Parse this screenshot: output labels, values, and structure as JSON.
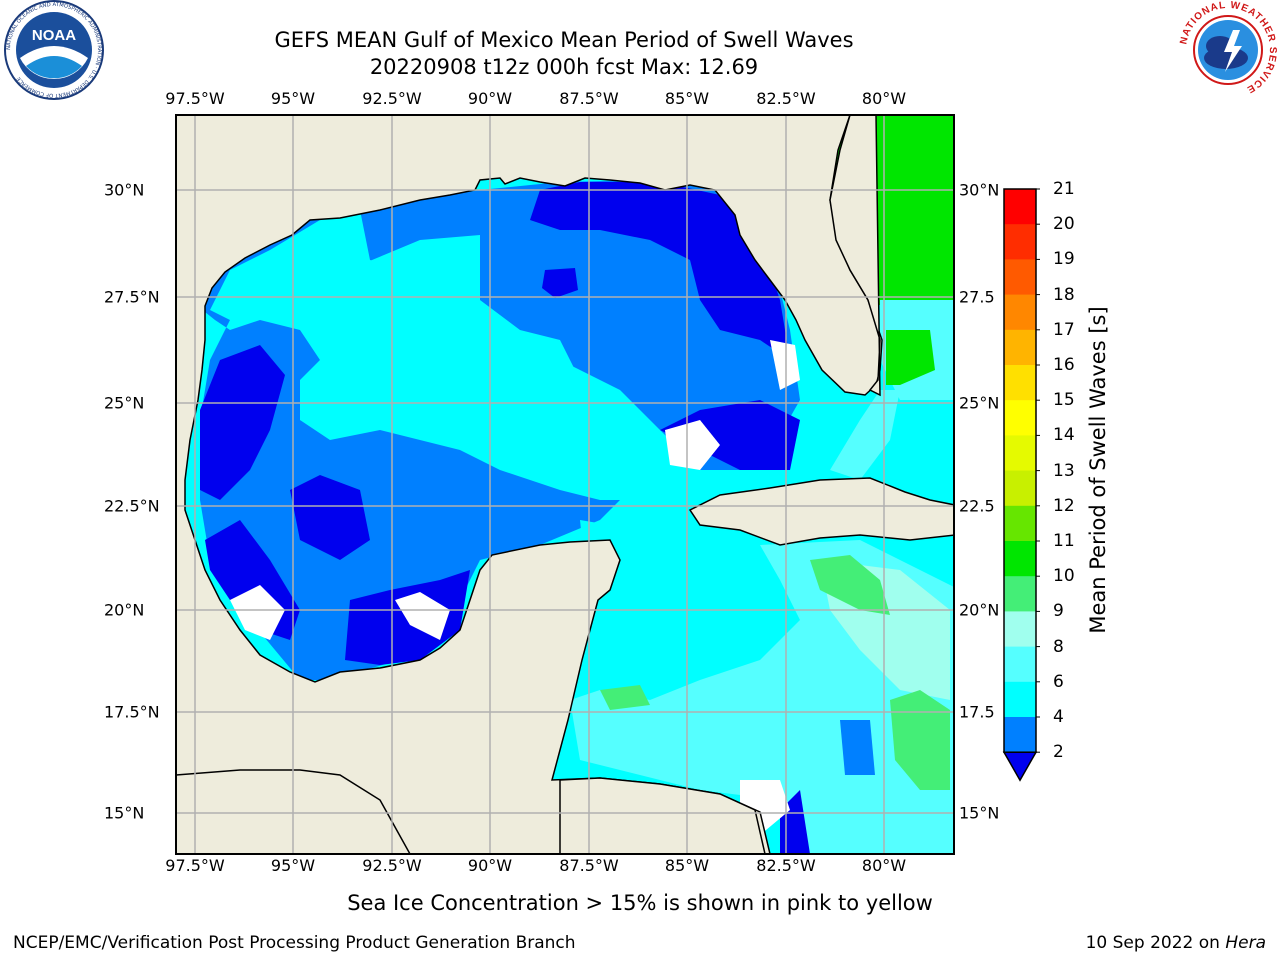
{
  "title": {
    "line1": "GEFS MEAN Gulf of Mexico Mean Period of Swell Waves",
    "line2": "20220908 t12z 000h fcst   Max: 12.69"
  },
  "map": {
    "lon_ticks": [
      "97.5°W",
      "95°W",
      "92.5°W",
      "90°W",
      "87.5°W",
      "85°W",
      "82.5°W",
      "80°W"
    ],
    "lat_ticks_left": [
      "30°N",
      "27.5°N",
      "25°N",
      "22.5°N",
      "20°N",
      "17.5°N",
      "15°N"
    ],
    "lat_ticks_right": [
      "30°N",
      "27.5",
      "25°N",
      "22.5",
      "20°N",
      "17.5",
      "15°N"
    ],
    "land_color": "#eeecdc",
    "grid_color": "#b0b0b0"
  },
  "colorbar": {
    "label": "Mean Period of Swell Waves [s]",
    "ticks": [
      "21",
      "20",
      "19",
      "18",
      "17",
      "16",
      "15",
      "14",
      "13",
      "12",
      "11",
      "10",
      "9",
      "8",
      "6",
      "4",
      "2"
    ],
    "bins": [
      {
        "range": "20-21",
        "color": "#ff0000"
      },
      {
        "range": "19-20",
        "color": "#ff2d00"
      },
      {
        "range": "18-19",
        "color": "#ff5a00"
      },
      {
        "range": "17-18",
        "color": "#ff8700"
      },
      {
        "range": "16-17",
        "color": "#ffb400"
      },
      {
        "range": "15-16",
        "color": "#ffe000"
      },
      {
        "range": "14-15",
        "color": "#ffff00"
      },
      {
        "range": "13-14",
        "color": "#e5fa00"
      },
      {
        "range": "12-13",
        "color": "#c8f000"
      },
      {
        "range": "11-12",
        "color": "#66e600"
      },
      {
        "range": "10-11",
        "color": "#00e600"
      },
      {
        "range": "9-10",
        "color": "#44ee77"
      },
      {
        "range": "8-9",
        "color": "#a0ffee"
      },
      {
        "range": "6-8",
        "color": "#55ffff"
      },
      {
        "range": "4-6",
        "color": "#00ffff"
      },
      {
        "range": "2-4",
        "color": "#0080ff"
      },
      {
        "range": "<2",
        "color": "#0000ee"
      }
    ]
  },
  "subtitle": "Sea Ice Concentration > 15% is shown in pink to yellow",
  "footer": {
    "left": "NCEP/EMC/Verification Post Processing Product Generation Branch",
    "right_date": "10 Sep 2022 on ",
    "right_machine": "Hera"
  },
  "logos": {
    "noaa_text": "NOAA",
    "noaa_ring": "NATIONAL OCEANIC AND ATMOSPHERIC ADMINISTRATION · U.S. DEPARTMENT OF COMMERCE",
    "nws_ring": "NATIONAL WEATHER SERVICE"
  }
}
